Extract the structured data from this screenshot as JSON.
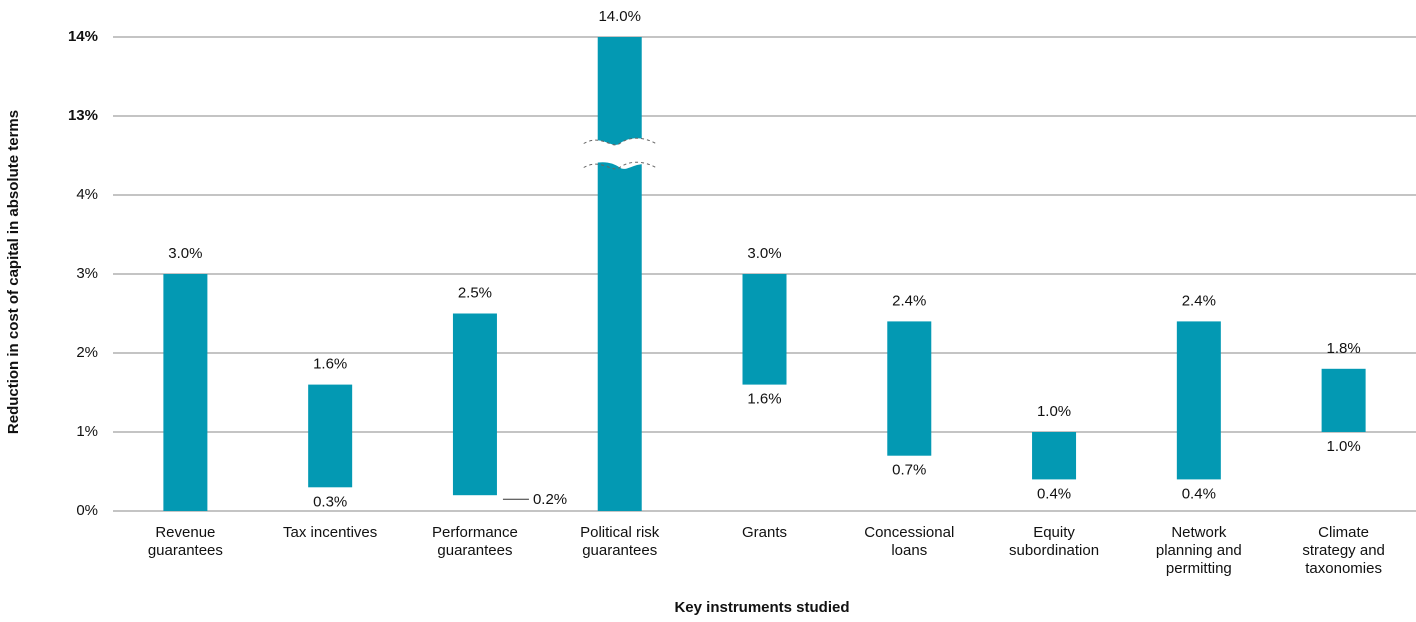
{
  "chart_data": {
    "type": "floating-bar",
    "y_label": "Reduction in cost of capital in absolute terms",
    "x_label": "Key instruments studied",
    "categories": [
      "Revenue guarantees",
      "Tax incentives",
      "Performance guarantees",
      "Political risk guarantees",
      "Grants",
      "Concessional loans",
      "Equity subordination",
      "Network planning and permitting",
      "Climate strategy and taxonomies"
    ],
    "low": {
      "values": [
        0,
        0.3,
        0.2,
        0,
        1.6,
        0.7,
        0.4,
        0.4,
        1.0
      ],
      "value_labels": [
        null,
        "0.3%",
        "0.2%",
        null,
        "1.6%",
        "0.7%",
        "0.4%",
        "0.4%",
        "1.0%"
      ]
    },
    "high": {
      "values": [
        3.0,
        1.6,
        2.5,
        14.0,
        3.0,
        2.4,
        1.0,
        2.4,
        1.8
      ],
      "value_labels": [
        "3.0%",
        "1.6%",
        "2.5%",
        "14.0%",
        "3.0%",
        "2.4%",
        "1.0%",
        "2.4%",
        "1.8%"
      ]
    },
    "color": "#0399b3",
    "ylim": [
      0,
      14
    ],
    "yticks": [
      {
        "value": 0,
        "label": "0%"
      },
      {
        "value": 1,
        "label": "1%"
      },
      {
        "value": 2,
        "label": "2%"
      },
      {
        "value": 3,
        "label": "3%"
      },
      {
        "value": 4,
        "label": "4%"
      },
      {
        "value": 13,
        "label": "13%"
      },
      {
        "value": 14,
        "label": "14%"
      }
    ],
    "grid": true
  }
}
